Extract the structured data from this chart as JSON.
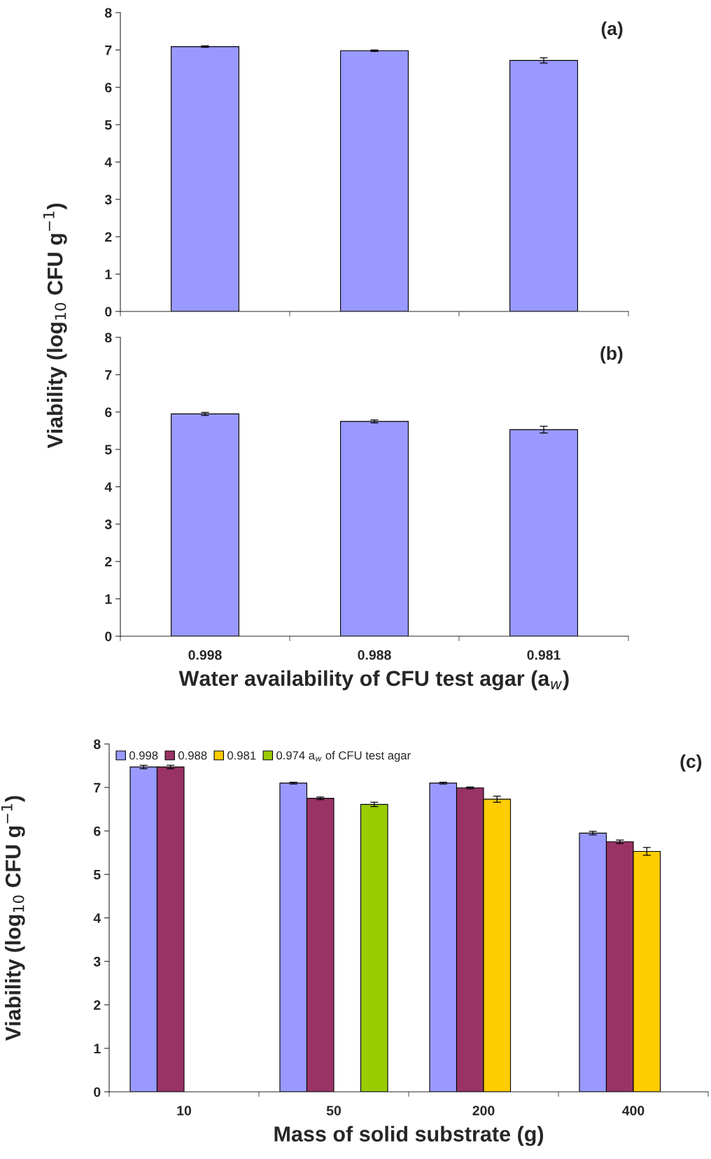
{
  "chart_data": [
    {
      "type": "bar",
      "title": "(a)",
      "ylabel": "Viability (log$_{10}$ CFU g$^{−1}$)",
      "categories": [
        null,
        null,
        null
      ],
      "ylim": [
        0,
        8
      ],
      "yticks": [
        0,
        1,
        2,
        3,
        4,
        5,
        6,
        7,
        8
      ],
      "legend": false,
      "grid": false,
      "series": [
        {
          "color": "#9999ff",
          "values": [
            7.09,
            6.98,
            6.72
          ],
          "errors": [
            0.02,
            0.02,
            0.07
          ]
        }
      ]
    },
    {
      "type": "bar",
      "title": "(b)",
      "xlabel": "Water availability of CFU test agar (a$_{w}$)",
      "categories": [
        "0.998",
        "0.988",
        "0.981"
      ],
      "ylim": [
        0,
        8
      ],
      "yticks": [
        0,
        1,
        2,
        3,
        4,
        5,
        6,
        7,
        8
      ],
      "legend": false,
      "grid": false,
      "series": [
        {
          "color": "#9999ff",
          "values": [
            5.95,
            5.75,
            5.53
          ],
          "errors": [
            0.04,
            0.04,
            0.09
          ]
        }
      ]
    },
    {
      "type": "bar",
      "title": "(c)",
      "xlabel": "Mass of solid substrate (g)",
      "ylabel": "Viability (log$_{10}$ CFU g$^{−1}$)",
      "categories": [
        "10",
        "50",
        "200",
        "400"
      ],
      "ylim": [
        0,
        8
      ],
      "yticks": [
        0,
        1,
        2,
        3,
        4,
        5,
        6,
        7,
        8
      ],
      "legend": "top left",
      "grid": false,
      "series": [
        {
          "name": "0.998",
          "color": "#9999ff",
          "values": [
            7.47,
            7.1,
            7.1,
            5.95
          ],
          "errors": [
            0.04,
            0.02,
            0.02,
            0.04
          ]
        },
        {
          "name": "0.988",
          "color": "#993366",
          "values": [
            7.47,
            6.75,
            6.99,
            5.75
          ],
          "errors": [
            0.04,
            0.03,
            0.02,
            0.04
          ]
        },
        {
          "name": "0.981",
          "color": "#ffcc00",
          "values": [
            null,
            null,
            6.73,
            5.53
          ],
          "errors": [
            null,
            null,
            0.07,
            0.09
          ]
        },
        {
          "name": "0.974 a$_{w}$ of CFU test agar",
          "color": "#99cc00",
          "values": [
            null,
            6.61,
            null,
            null
          ],
          "errors": [
            null,
            0.05,
            null,
            null
          ]
        }
      ]
    }
  ]
}
